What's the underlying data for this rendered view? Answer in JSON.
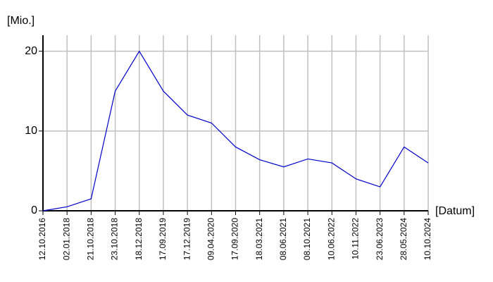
{
  "chart_data": {
    "type": "line",
    "y_label": "[Mio.]",
    "x_label": "[Datum]",
    "categories": [
      "12.10.2016",
      "02.01.2018",
      "21.10.2018",
      "23.10.2018",
      "18.12.2018",
      "17.09.2019",
      "17.12.2019",
      "09.04.2020",
      "17.09.2020",
      "18.03.2021",
      "08.06.2021",
      "08.10.2021",
      "10.06.2022",
      "10.11.2022",
      "23.06.2023",
      "28.05.2024",
      "10.10.2024"
    ],
    "series": [
      {
        "name": "Mio.",
        "color": "#0000cc",
        "values": [
          0,
          0.5,
          1.5,
          15,
          20,
          15,
          12,
          11,
          8,
          6.4,
          5.5,
          6.5,
          6,
          4,
          3,
          8,
          6
        ]
      }
    ],
    "ylim": [
      0,
      22
    ],
    "yticks": [
      0,
      10,
      20
    ],
    "grid": true
  }
}
